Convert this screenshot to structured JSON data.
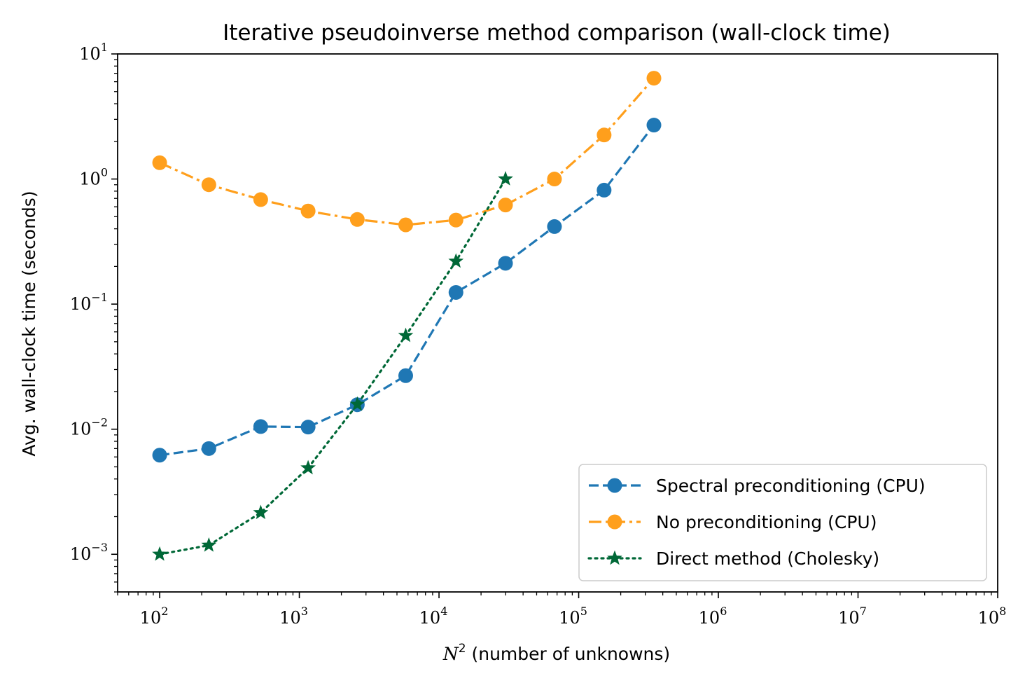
{
  "chart_data": {
    "type": "line",
    "title": "Iterative pseudoinverse method comparison (wall-clock time)",
    "xlabel_math": "N",
    "xlabel_math_sup": "2",
    "xlabel": "(number of unknowns)",
    "ylabel": "Avg. wall-clock time (seconds)",
    "xscale": "log",
    "yscale": "log",
    "xlim": [
      50,
      100000000
    ],
    "ylim": [
      0.0005,
      10
    ],
    "xticks": [
      {
        "value": 100,
        "base": "10",
        "exp": "2"
      },
      {
        "value": 1000,
        "base": "10",
        "exp": "3"
      },
      {
        "value": 10000,
        "base": "10",
        "exp": "4"
      },
      {
        "value": 100000,
        "base": "10",
        "exp": "5"
      },
      {
        "value": 1000000,
        "base": "10",
        "exp": "6"
      },
      {
        "value": 10000000,
        "base": "10",
        "exp": "7"
      },
      {
        "value": 100000000,
        "base": "10",
        "exp": "8"
      }
    ],
    "yticks": [
      {
        "value": 0.001,
        "base": "10",
        "exp": "−3"
      },
      {
        "value": 0.01,
        "base": "10",
        "exp": "−2"
      },
      {
        "value": 0.1,
        "base": "10",
        "exp": "−1"
      },
      {
        "value": 1,
        "base": "10",
        "exp": "0"
      },
      {
        "value": 10,
        "base": "10",
        "exp": "1"
      }
    ],
    "grid": false,
    "legend_position": "lower-right",
    "series": [
      {
        "name": "Spectral preconditioning (CPU)",
        "color": "#1f77b4",
        "linestyle": "dashed",
        "marker": "circle",
        "x": [
          100,
          225,
          529,
          1156,
          2601,
          5776,
          13225,
          29929,
          67081,
          152100,
          345744
        ],
        "y": [
          0.0062,
          0.007,
          0.0105,
          0.0104,
          0.0157,
          0.0268,
          0.124,
          0.212,
          0.417,
          0.815,
          2.7
        ]
      },
      {
        "name": "No preconditioning (CPU)",
        "color": "#ff9f1c",
        "linestyle": "dashdot",
        "marker": "circle",
        "x": [
          100,
          225,
          529,
          1156,
          2601,
          5776,
          13225,
          29929,
          67081,
          152100,
          345744
        ],
        "y": [
          1.35,
          0.9,
          0.685,
          0.555,
          0.475,
          0.43,
          0.47,
          0.62,
          1.0,
          2.25,
          6.4
        ]
      },
      {
        "name": "Direct method (Cholesky)",
        "color": "#006837",
        "linestyle": "dotted",
        "marker": "star",
        "x": [
          100,
          225,
          529,
          1156,
          2601,
          5776,
          13225,
          29929
        ],
        "y": [
          0.001,
          0.00118,
          0.00215,
          0.0049,
          0.0158,
          0.056,
          0.22,
          1.0
        ]
      }
    ]
  }
}
